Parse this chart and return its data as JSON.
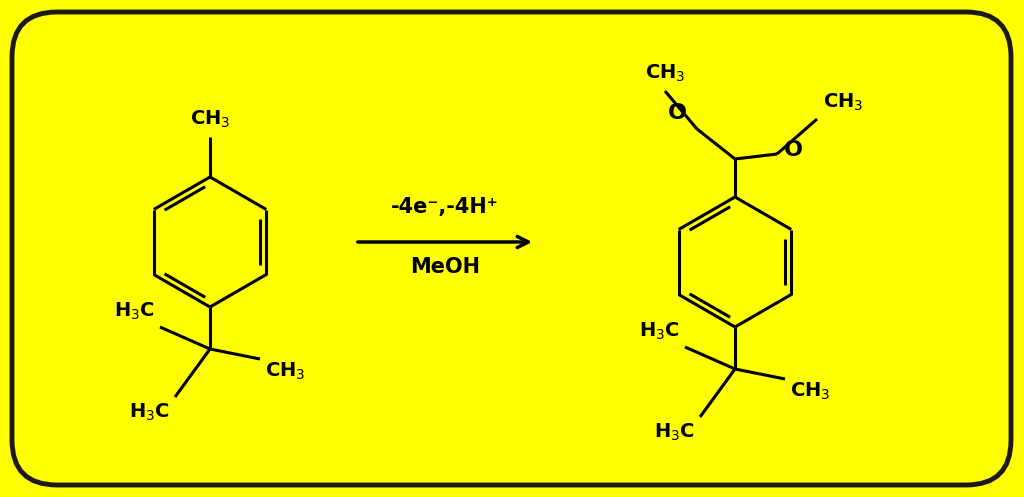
{
  "bg_color": "#FFFF00",
  "outline_color": "#1a1a1a",
  "line_color": "#000000",
  "text_color": "#000000",
  "fig_width": 10.24,
  "fig_height": 4.97,
  "arrow_label_top": "-4e⁻,-4H⁺",
  "arrow_label_bottom": "MeOH",
  "font_size_main": 14,
  "font_size_label": 15,
  "font_size_O": 16
}
